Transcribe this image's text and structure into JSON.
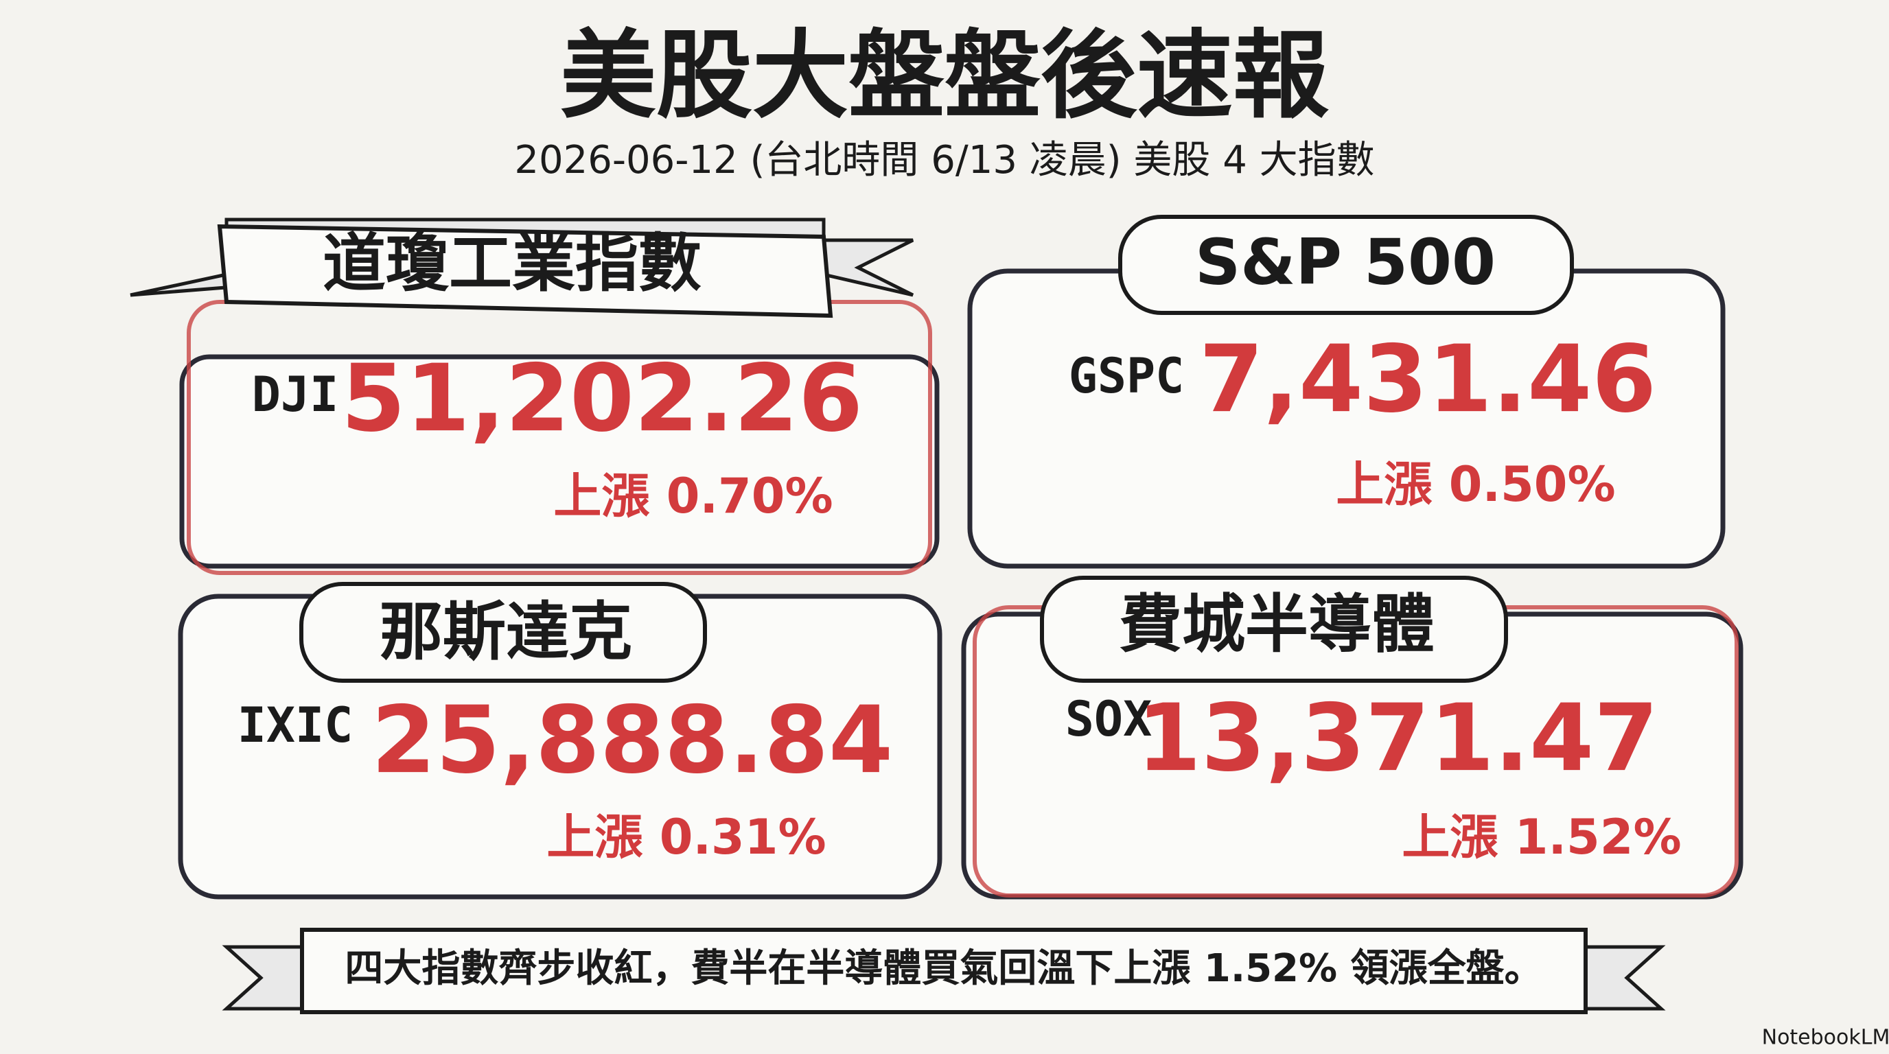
{
  "header": {
    "title": "美股大盤盤後速報",
    "subtitle": "2026-06-12 (台北時間 6/13 凌晨) 美股 4 大指數"
  },
  "cards": [
    {
      "name": "道瓊工業指數",
      "code": "DJI",
      "value": "51,202.26",
      "change": "上漲 0.70%"
    },
    {
      "name": "S&P 500",
      "code": "GSPC",
      "value": "7,431.46",
      "change": "上漲 0.50%"
    },
    {
      "name": "那斯達克",
      "code": "IXIC",
      "value": "25,888.84",
      "change": "上漲 0.31%"
    },
    {
      "name": "費城半導體",
      "code": "SOX",
      "value": "13,371.47",
      "change": "上漲 1.52%"
    }
  ],
  "footer": {
    "note": "四大指數齊步收紅，費半在半導體買氣回溫下上漲 1.52% 領漲全盤。"
  },
  "brand": "NotebookLM"
}
